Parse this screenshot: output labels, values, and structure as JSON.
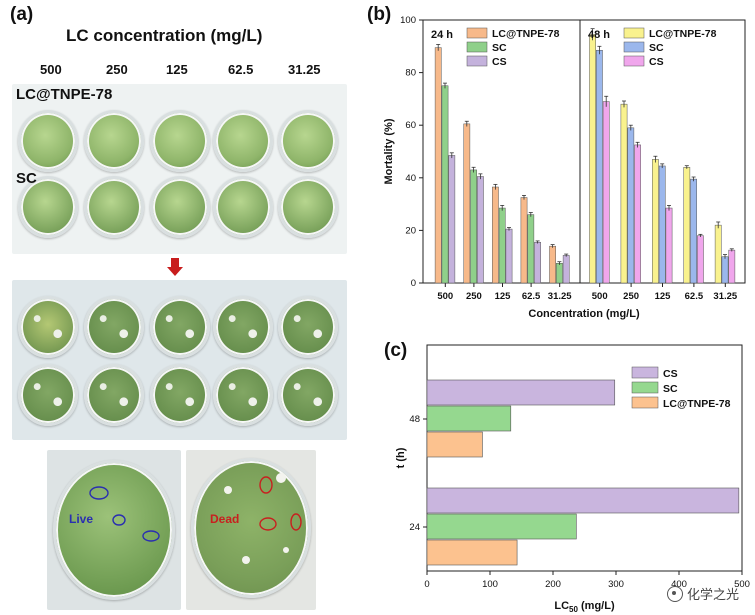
{
  "panels": {
    "a": "(a)",
    "b": "(b)",
    "c": "(c)"
  },
  "photo_panel": {
    "heading": "LC concentration (mg/L)",
    "concentrations": [
      "500",
      "250",
      "125",
      "62.5",
      "31.25"
    ],
    "row_labels": [
      "LC@TNPE-78",
      "SC"
    ],
    "live_label": "Live",
    "dead_label": "Dead",
    "colors": {
      "leaf": "#8fb56a",
      "leaf_dark": "#5f8a43",
      "live_text": "#2a2fb0",
      "dead_text": "#c8201f",
      "arrow": "#c81d1d"
    }
  },
  "chart_data": [
    {
      "type": "bar",
      "panel": "b",
      "xlabel": "Concentration (mg/L)",
      "ylabel": "Mortality (%)",
      "ylim": [
        0,
        100
      ],
      "yticks": [
        0,
        20,
        40,
        60,
        80,
        100
      ],
      "groups": [
        {
          "label": "24 h",
          "categories": [
            "500",
            "250",
            "125",
            "62.5",
            "31.25"
          ],
          "series": [
            {
              "name": "LC@TNPE-78",
              "color": "#f7b98a",
              "values": [
                89.5,
                60.5,
                36.5,
                32.5,
                14
              ],
              "errors": [
                1.2,
                1,
                1,
                0.8,
                0.6
              ]
            },
            {
              "name": "SC",
              "color": "#8fd08a",
              "values": [
                75,
                43,
                28.5,
                26,
                7.5
              ],
              "errors": [
                1,
                1,
                1,
                0.8,
                0.6
              ]
            },
            {
              "name": "CS",
              "color": "#c4b2dc",
              "values": [
                48.5,
                40.5,
                20.5,
                15.5,
                10.5
              ],
              "errors": [
                1,
                1,
                0.6,
                0.5,
                0.5
              ]
            }
          ]
        },
        {
          "label": "48 h",
          "categories": [
            "500",
            "250",
            "125",
            "62.5",
            "31.25"
          ],
          "series": [
            {
              "name": "LC@TNPE-78",
              "color": "#f9f28e",
              "values": [
                94.5,
                68,
                47,
                44,
                22
              ],
              "errors": [
                2.2,
                1.2,
                1.2,
                0.6,
                1.2
              ]
            },
            {
              "name": "SC",
              "color": "#9bb7ec",
              "values": [
                88.5,
                59,
                44.5,
                39.5,
                10
              ],
              "errors": [
                1.5,
                1,
                0.8,
                0.8,
                0.8
              ]
            },
            {
              "name": "CS",
              "color": "#f0a6ec",
              "values": [
                69,
                52.5,
                28.5,
                18,
                12.5
              ],
              "errors": [
                2,
                1,
                1,
                0.5,
                0.5
              ]
            }
          ]
        }
      ]
    },
    {
      "type": "bar",
      "orientation": "horizontal",
      "panel": "c",
      "xlabel": "LC",
      "xlabel_sub": "50",
      "xlabel_unit": " (mg/L)",
      "ylabel": "t (h)",
      "xlim": [
        0,
        500
      ],
      "xticks": [
        0,
        100,
        200,
        300,
        400,
        500
      ],
      "categories": [
        "48",
        "24"
      ],
      "series": [
        {
          "name": "CS",
          "color": "#c9b5de",
          "values": [
            298,
            495
          ]
        },
        {
          "name": "SC",
          "color": "#95d88f",
          "values": [
            133,
            237
          ]
        },
        {
          "name": "LC@TNPE-78",
          "color": "#fcc28f",
          "values": [
            88,
            143
          ]
        }
      ]
    }
  ],
  "watermark": "化学之光"
}
